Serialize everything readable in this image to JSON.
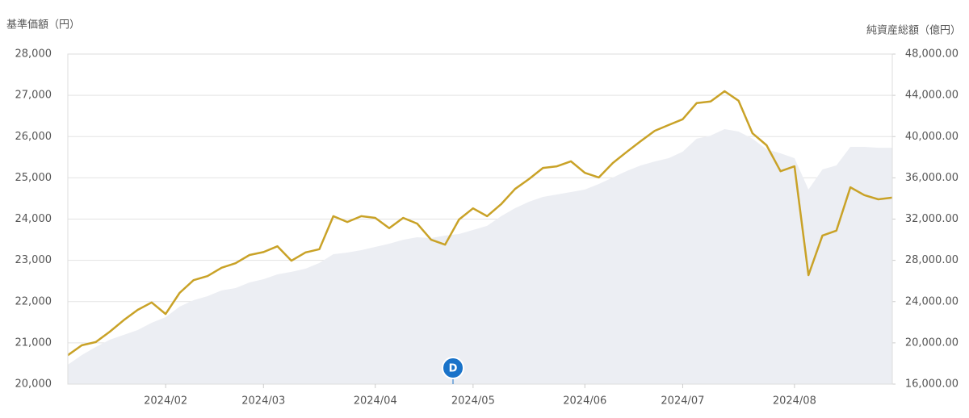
{
  "chart_data": {
    "type": "line",
    "y_axis_label": "基準価額（円）",
    "y2_axis_label": "純資産総額（億円）",
    "annotation": "D",
    "categories": [
      null,
      null,
      null,
      null,
      null,
      null,
      null,
      "2024/02",
      null,
      null,
      null,
      null,
      null,
      null,
      "2024/03",
      null,
      null,
      null,
      null,
      null,
      null,
      null,
      "2024/04",
      null,
      null,
      null,
      null,
      null,
      null,
      "2024/05",
      null,
      null,
      null,
      null,
      null,
      null,
      null,
      "2024/06",
      null,
      null,
      null,
      null,
      null,
      null,
      "2024/07",
      null,
      null,
      null,
      null,
      null,
      null,
      null,
      "2024/08",
      null,
      null,
      null,
      null,
      null,
      null,
      null
    ],
    "series": [
      {
        "color": "#c9a227",
        "values": [
          20700,
          20940,
          21020,
          21270,
          21550,
          21800,
          21980,
          21700,
          22210,
          22520,
          22620,
          22820,
          22930,
          23130,
          23200,
          23340,
          22990,
          23190,
          23270,
          24070,
          23930,
          24070,
          24030,
          23780,
          24030,
          23890,
          23500,
          23380,
          23990,
          24260,
          24070,
          24360,
          24730,
          24970,
          25240,
          25280,
          25400,
          25120,
          25010,
          25360,
          25630,
          25890,
          26140,
          26280,
          26420,
          26810,
          26850,
          27100,
          26870,
          26080,
          25790,
          25160,
          25280,
          22640,
          23600,
          23720,
          24770,
          24580,
          24480,
          24520
        ]
      },
      {
        "color": "#eceef3",
        "axis": "y2",
        "values": [
          17880,
          18820,
          19600,
          20300,
          20770,
          21240,
          21950,
          22490,
          23510,
          24140,
          24530,
          25080,
          25310,
          25860,
          26170,
          26640,
          26880,
          27190,
          27740,
          28600,
          28750,
          28990,
          29300,
          29610,
          30000,
          30240,
          30160,
          30400,
          30550,
          30940,
          31340,
          32270,
          33060,
          33680,
          34150,
          34390,
          34620,
          34860,
          35400,
          36030,
          36660,
          37200,
          37590,
          37910,
          38530,
          39790,
          40100,
          40720,
          40490,
          39790,
          38770,
          38380,
          37910,
          34860,
          36810,
          37200,
          39000,
          39000,
          38920,
          38920
        ]
      }
    ],
    "ylim": [
      20000,
      28000
    ],
    "yticks": [
      {
        "value": 20000,
        "label": "20,000"
      },
      {
        "value": 21000,
        "label": "21,000"
      },
      {
        "value": 22000,
        "label": "22,000"
      },
      {
        "value": 23000,
        "label": "23,000"
      },
      {
        "value": 24000,
        "label": "24,000"
      },
      {
        "value": 25000,
        "label": "25,000"
      },
      {
        "value": 26000,
        "label": "26,000"
      },
      {
        "value": 27000,
        "label": "27,000"
      },
      {
        "value": 28000,
        "label": "28,000"
      }
    ],
    "y2lim": [
      16000,
      48000
    ],
    "y2ticks": [
      {
        "value": 16000,
        "label": "16,000.00"
      },
      {
        "value": 20000,
        "label": "20,000.00"
      },
      {
        "value": 24000,
        "label": "24,000.00"
      },
      {
        "value": 28000,
        "label": "28,000.00"
      },
      {
        "value": 32000,
        "label": "32,000.00"
      },
      {
        "value": 36000,
        "label": "36,000.00"
      },
      {
        "value": 40000,
        "label": "40,000.00"
      },
      {
        "value": 44000,
        "label": "44,000.00"
      },
      {
        "value": 48000,
        "label": "48,000.00"
      }
    ],
    "grid": true
  }
}
